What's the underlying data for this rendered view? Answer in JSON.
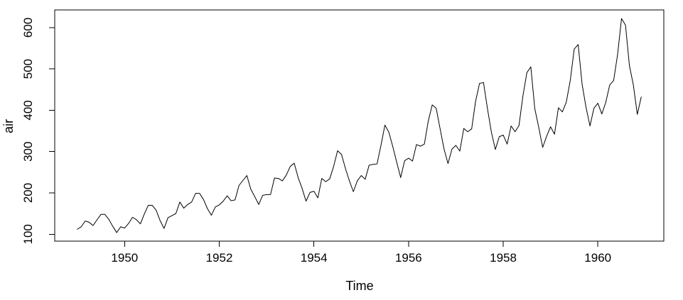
{
  "figure": {
    "background": "#ffffff",
    "line_color": "#000000",
    "axis_color": "#000000",
    "text_color": "#000000"
  },
  "chart_data": {
    "type": "line",
    "title": "",
    "xlabel": "Time",
    "ylabel": "air",
    "grid": false,
    "legend": "none",
    "x_start": 1949,
    "frequency": 12,
    "values": [
      112,
      118,
      132,
      129,
      121,
      135,
      148,
      148,
      136,
      119,
      104,
      118,
      115,
      126,
      141,
      135,
      125,
      149,
      170,
      170,
      158,
      133,
      114,
      140,
      145,
      150,
      178,
      163,
      172,
      178,
      199,
      199,
      184,
      162,
      146,
      166,
      171,
      180,
      193,
      181,
      183,
      218,
      230,
      242,
      209,
      191,
      172,
      194,
      196,
      196,
      236,
      235,
      229,
      243,
      264,
      272,
      237,
      211,
      180,
      201,
      204,
      188,
      235,
      227,
      234,
      264,
      302,
      293,
      259,
      229,
      203,
      229,
      242,
      233,
      267,
      269,
      270,
      315,
      364,
      347,
      312,
      274,
      237,
      278,
      284,
      277,
      317,
      313,
      318,
      374,
      413,
      405,
      355,
      306,
      271,
      306,
      315,
      301,
      356,
      348,
      355,
      422,
      465,
      467,
      404,
      347,
      305,
      336,
      340,
      318,
      362,
      348,
      363,
      435,
      491,
      505,
      404,
      359,
      310,
      337,
      360,
      342,
      406,
      396,
      420,
      472,
      548,
      559,
      463,
      407,
      362,
      405,
      417,
      391,
      419,
      461,
      472,
      535,
      622,
      606,
      508,
      461,
      390,
      432
    ],
    "x_ticks": [
      1950,
      1952,
      1954,
      1956,
      1958,
      1960
    ],
    "y_ticks": [
      100,
      200,
      300,
      400,
      500,
      600
    ],
    "xlim": [
      1948.5233,
      1961.3933
    ],
    "ylim": [
      83.28,
      642.72
    ]
  }
}
